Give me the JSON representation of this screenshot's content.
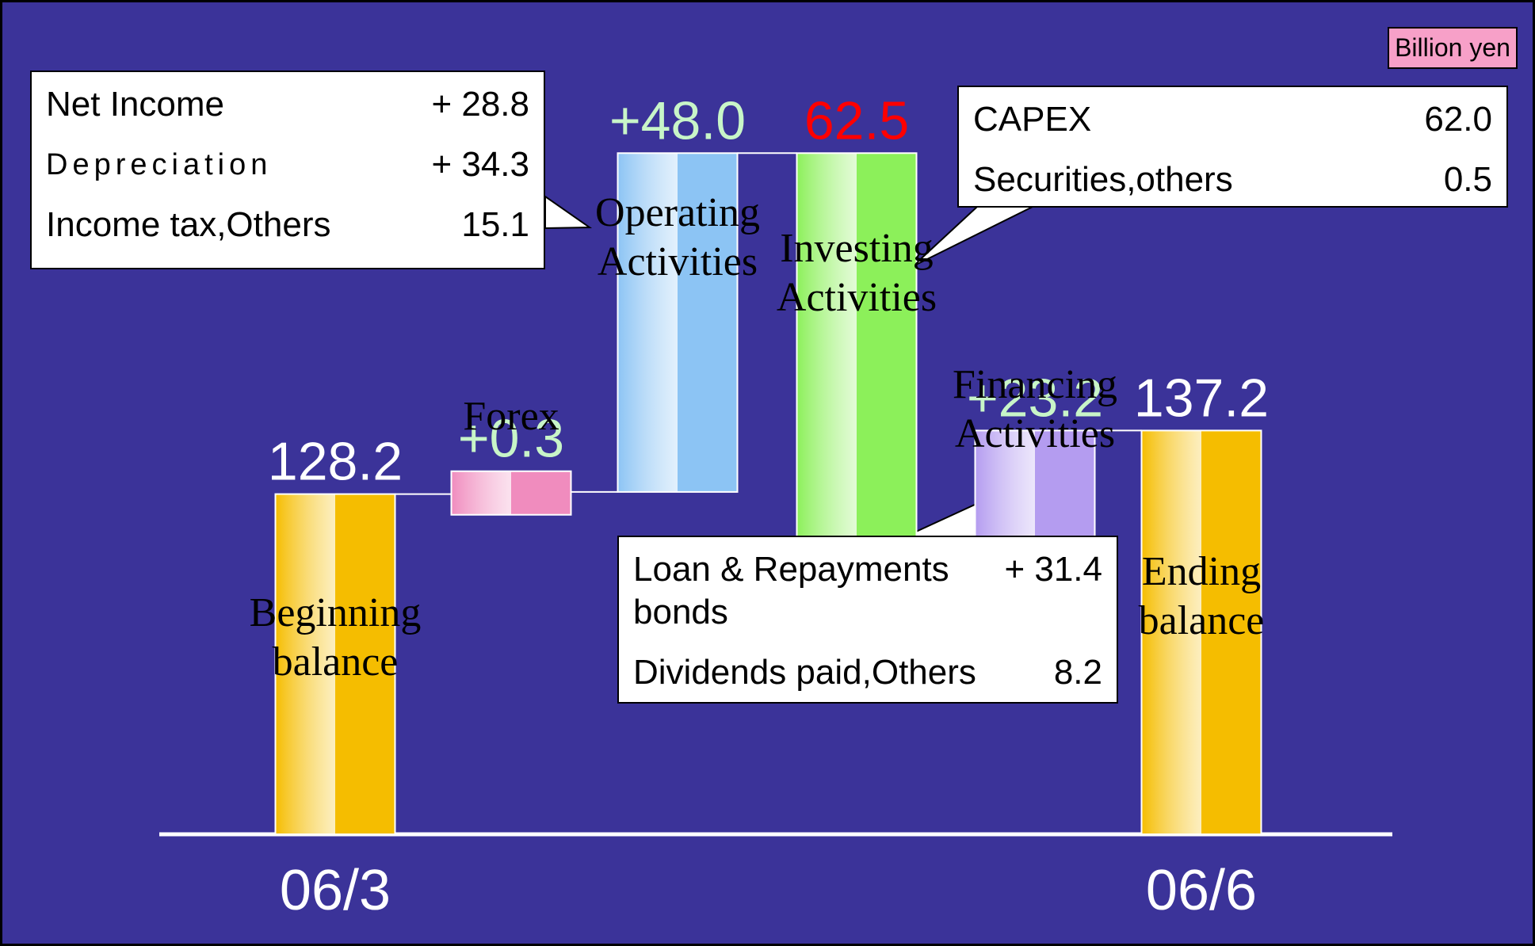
{
  "chart_data": {
    "type": "waterfall",
    "unit_label": "Billion yen",
    "categories": [
      "Beginning balance",
      "Forex",
      "Operating Activities",
      "Investing Activities",
      "Financing Activities",
      "Ending balance"
    ],
    "values": [
      128.2,
      0.3,
      48.0,
      -62.5,
      23.2,
      137.2
    ],
    "value_labels": [
      "128.2",
      "+0.3",
      "+48.0",
      "62.5",
      "+23.2",
      "137.2"
    ],
    "is_total": [
      true,
      false,
      false,
      false,
      false,
      true
    ],
    "colors": [
      "#f5bd00",
      "#f08cbe",
      "#8cc4f4",
      "#8cf05a",
      "#b49cf0",
      "#f5bd00"
    ],
    "value_label_colors": [
      "#ffffff",
      "#c8f5c8",
      "#c8f5c8",
      "#ff0000",
      "#c8f5c8",
      "#ffffff"
    ],
    "periods": [
      "06/3",
      null,
      null,
      null,
      null,
      "06/6"
    ],
    "ylim": [
      80,
      190
    ],
    "callouts": [
      {
        "rows": [
          [
            "Net Income",
            "+ 28.8"
          ],
          [
            "Depreciation",
            "+ 34.3"
          ],
          [
            "Income tax,Others",
            "15.1"
          ]
        ]
      },
      {
        "rows": [
          [
            "CAPEX",
            "62.0"
          ],
          [
            "Securities,others",
            "0.5"
          ]
        ]
      },
      {
        "rows": [
          [
            "Loan & Repayments bonds",
            "+ 31.4"
          ],
          [
            "Dividends paid,Others",
            "8.2"
          ]
        ]
      }
    ]
  }
}
